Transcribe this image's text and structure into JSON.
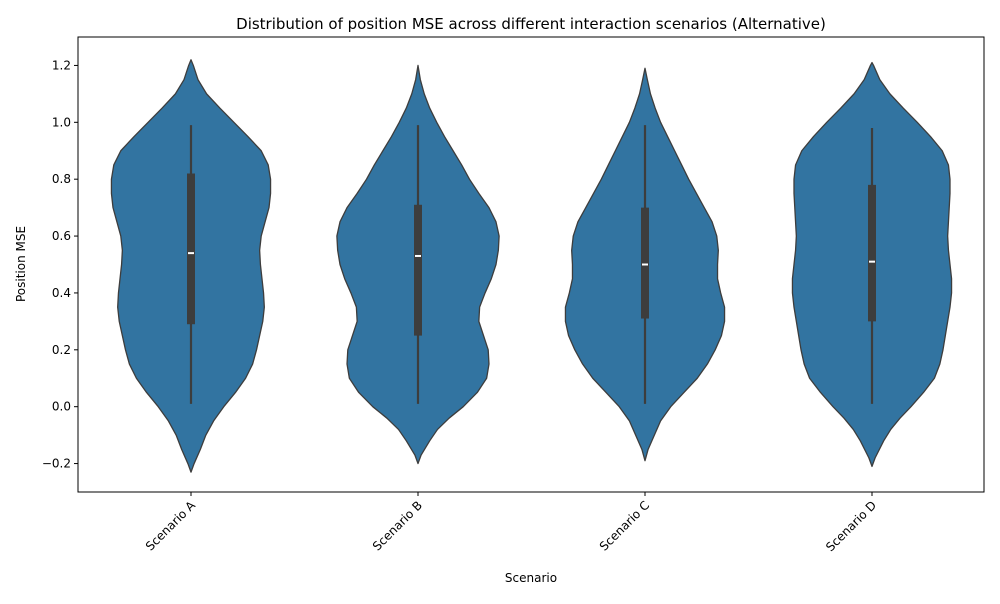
{
  "chart_data": {
    "type": "violin",
    "title": "Distribution of position MSE across different interaction scenarios (Alternative)",
    "xlabel": "Scenario",
    "ylabel": "Position MSE",
    "ylim": [
      -0.3,
      1.3
    ],
    "grid": false,
    "yticks": [
      -0.2,
      0.0,
      0.2,
      0.4,
      0.6,
      0.8,
      1.0,
      1.2
    ],
    "ytick_labels": [
      "−0.2",
      "0.0",
      "0.2",
      "0.4",
      "0.6",
      "0.8",
      "1.0",
      "1.2"
    ],
    "xtick_rotation_deg": 45,
    "colors": {
      "violin_fill": "#3274a1",
      "violin_edge": "#3d3d3d",
      "box": "#3d3d3d",
      "median": "#ffffff"
    },
    "categories": [
      "Scenario A",
      "Scenario B",
      "Scenario C",
      "Scenario D"
    ],
    "series": [
      {
        "name": "Scenario A",
        "min": 0.01,
        "q1": 0.29,
        "median": 0.54,
        "q3": 0.82,
        "max": 0.99,
        "density_extent": [
          -0.23,
          1.22
        ],
        "density_profile": [
          [
            -0.23,
            0.0
          ],
          [
            -0.2,
            0.04
          ],
          [
            -0.15,
            0.12
          ],
          [
            -0.1,
            0.19
          ],
          [
            -0.05,
            0.29
          ],
          [
            0.0,
            0.42
          ],
          [
            0.05,
            0.57
          ],
          [
            0.1,
            0.7
          ],
          [
            0.15,
            0.79
          ],
          [
            0.2,
            0.84
          ],
          [
            0.25,
            0.88
          ],
          [
            0.3,
            0.92
          ],
          [
            0.35,
            0.94
          ],
          [
            0.4,
            0.93
          ],
          [
            0.45,
            0.91
          ],
          [
            0.5,
            0.89
          ],
          [
            0.55,
            0.88
          ],
          [
            0.6,
            0.9
          ],
          [
            0.65,
            0.95
          ],
          [
            0.7,
            1.0
          ],
          [
            0.75,
            1.02
          ],
          [
            0.8,
            1.02
          ],
          [
            0.85,
            0.99
          ],
          [
            0.9,
            0.9
          ],
          [
            0.95,
            0.73
          ],
          [
            1.0,
            0.55
          ],
          [
            1.05,
            0.37
          ],
          [
            1.1,
            0.2
          ],
          [
            1.15,
            0.09
          ],
          [
            1.2,
            0.03
          ],
          [
            1.22,
            0.0
          ]
        ]
      },
      {
        "name": "Scenario B",
        "min": 0.01,
        "q1": 0.25,
        "median": 0.53,
        "q3": 0.71,
        "max": 0.99,
        "density_extent": [
          -0.2,
          1.2
        ],
        "density_profile": [
          [
            -0.2,
            0.0
          ],
          [
            -0.17,
            0.04
          ],
          [
            -0.12,
            0.15
          ],
          [
            -0.08,
            0.25
          ],
          [
            -0.04,
            0.4
          ],
          [
            0.0,
            0.58
          ],
          [
            0.05,
            0.76
          ],
          [
            0.1,
            0.88
          ],
          [
            0.15,
            0.91
          ],
          [
            0.2,
            0.9
          ],
          [
            0.25,
            0.84
          ],
          [
            0.3,
            0.78
          ],
          [
            0.35,
            0.79
          ],
          [
            0.4,
            0.86
          ],
          [
            0.45,
            0.94
          ],
          [
            0.5,
            1.0
          ],
          [
            0.55,
            1.03
          ],
          [
            0.6,
            1.04
          ],
          [
            0.65,
            1.0
          ],
          [
            0.7,
            0.91
          ],
          [
            0.75,
            0.78
          ],
          [
            0.8,
            0.66
          ],
          [
            0.85,
            0.56
          ],
          [
            0.9,
            0.45
          ],
          [
            0.95,
            0.34
          ],
          [
            1.0,
            0.24
          ],
          [
            1.05,
            0.15
          ],
          [
            1.1,
            0.08
          ],
          [
            1.15,
            0.03
          ],
          [
            1.2,
            0.0
          ]
        ]
      },
      {
        "name": "Scenario C",
        "min": 0.01,
        "q1": 0.31,
        "median": 0.5,
        "q3": 0.7,
        "max": 0.99,
        "density_extent": [
          -0.19,
          1.19
        ],
        "density_profile": [
          [
            -0.19,
            0.0
          ],
          [
            -0.15,
            0.04
          ],
          [
            -0.1,
            0.12
          ],
          [
            -0.05,
            0.2
          ],
          [
            0.0,
            0.33
          ],
          [
            0.05,
            0.5
          ],
          [
            0.1,
            0.67
          ],
          [
            0.15,
            0.8
          ],
          [
            0.2,
            0.9
          ],
          [
            0.25,
            0.98
          ],
          [
            0.3,
            1.02
          ],
          [
            0.35,
            1.02
          ],
          [
            0.4,
            0.97
          ],
          [
            0.45,
            0.93
          ],
          [
            0.5,
            0.93
          ],
          [
            0.55,
            0.94
          ],
          [
            0.6,
            0.92
          ],
          [
            0.65,
            0.86
          ],
          [
            0.7,
            0.76
          ],
          [
            0.75,
            0.66
          ],
          [
            0.8,
            0.56
          ],
          [
            0.85,
            0.47
          ],
          [
            0.9,
            0.38
          ],
          [
            0.95,
            0.29
          ],
          [
            1.0,
            0.2
          ],
          [
            1.05,
            0.13
          ],
          [
            1.1,
            0.07
          ],
          [
            1.15,
            0.03
          ],
          [
            1.19,
            0.0
          ]
        ]
      },
      {
        "name": "Scenario D",
        "min": 0.01,
        "q1": 0.3,
        "median": 0.51,
        "q3": 0.78,
        "max": 0.98,
        "density_extent": [
          -0.21,
          1.21
        ],
        "density_profile": [
          [
            -0.21,
            0.0
          ],
          [
            -0.18,
            0.04
          ],
          [
            -0.12,
            0.15
          ],
          [
            -0.08,
            0.24
          ],
          [
            -0.04,
            0.36
          ],
          [
            0.0,
            0.5
          ],
          [
            0.05,
            0.66
          ],
          [
            0.1,
            0.8
          ],
          [
            0.15,
            0.87
          ],
          [
            0.2,
            0.91
          ],
          [
            0.25,
            0.94
          ],
          [
            0.3,
            0.97
          ],
          [
            0.35,
            1.0
          ],
          [
            0.4,
            1.02
          ],
          [
            0.45,
            1.02
          ],
          [
            0.5,
            1.0
          ],
          [
            0.55,
            0.98
          ],
          [
            0.6,
            0.97
          ],
          [
            0.65,
            0.98
          ],
          [
            0.7,
            0.99
          ],
          [
            0.75,
            1.0
          ],
          [
            0.8,
            1.0
          ],
          [
            0.85,
            0.98
          ],
          [
            0.9,
            0.9
          ],
          [
            0.95,
            0.75
          ],
          [
            1.0,
            0.58
          ],
          [
            1.05,
            0.4
          ],
          [
            1.1,
            0.23
          ],
          [
            1.15,
            0.1
          ],
          [
            1.2,
            0.02
          ],
          [
            1.21,
            0.0
          ]
        ]
      }
    ]
  }
}
